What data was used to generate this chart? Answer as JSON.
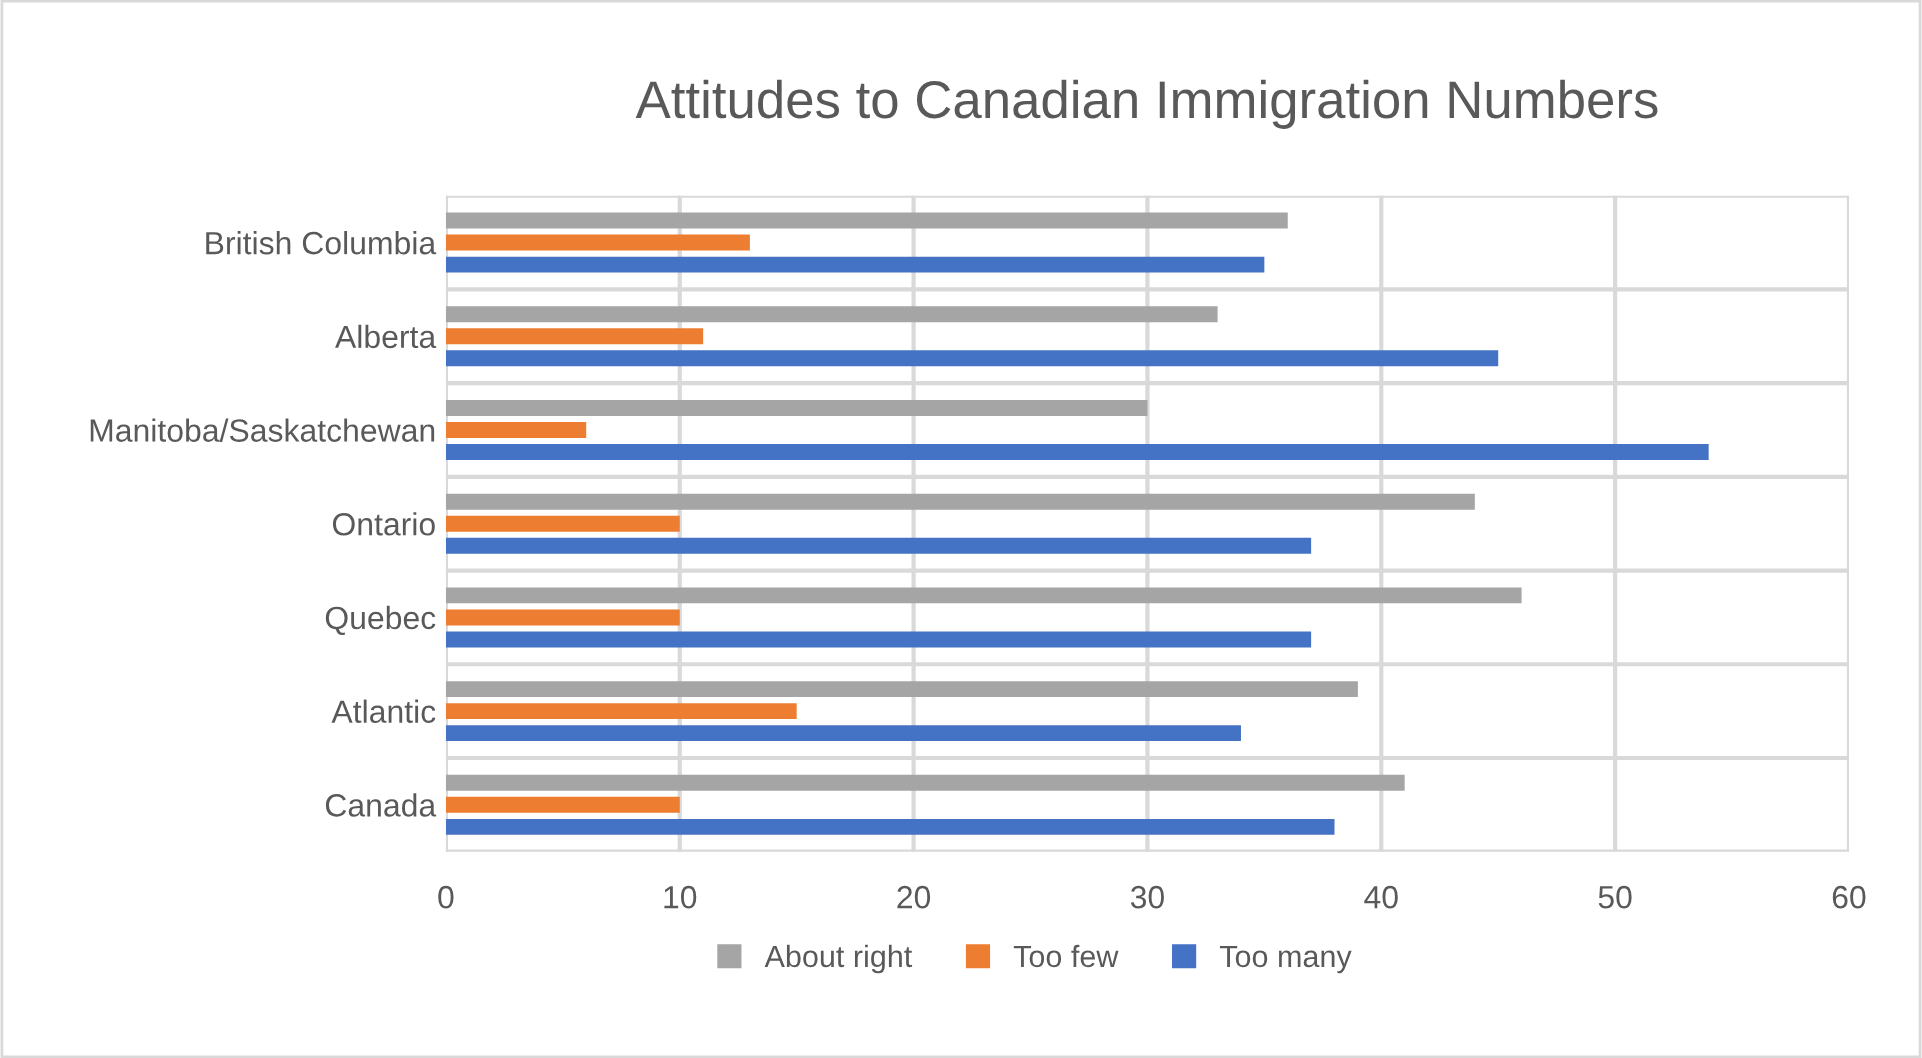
{
  "chart_data": {
    "type": "bar",
    "orientation": "horizontal",
    "title": "Attitudes to Canadian Immigration Numbers",
    "categories": [
      "British Columbia",
      "Alberta",
      "Manitoba/Saskatchewan",
      "Ontario",
      "Quebec",
      "Atlantic",
      "Canada"
    ],
    "series": [
      {
        "name": "About right",
        "color": "#a5a5a5",
        "values": [
          36,
          33,
          30,
          44,
          46,
          39,
          41
        ]
      },
      {
        "name": "Too few",
        "color": "#ed7d31",
        "values": [
          13,
          11,
          6,
          10,
          10,
          15,
          10
        ]
      },
      {
        "name": "Too many",
        "color": "#4472c4",
        "values": [
          35,
          45,
          54,
          37,
          37,
          34,
          38
        ]
      }
    ],
    "xlim": [
      0,
      60
    ],
    "xticks": [
      0,
      10,
      20,
      30,
      40,
      50,
      60
    ],
    "grid": true,
    "legend": "bottom"
  }
}
